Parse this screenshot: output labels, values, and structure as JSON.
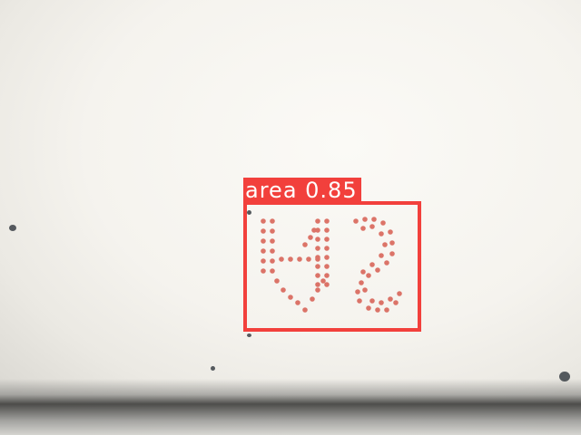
{
  "detection": {
    "label": "area 0.85",
    "box_color": "#f2403c",
    "label_text_color": "#ffffff"
  },
  "marking": {
    "description_color": "#d96a5e"
  }
}
